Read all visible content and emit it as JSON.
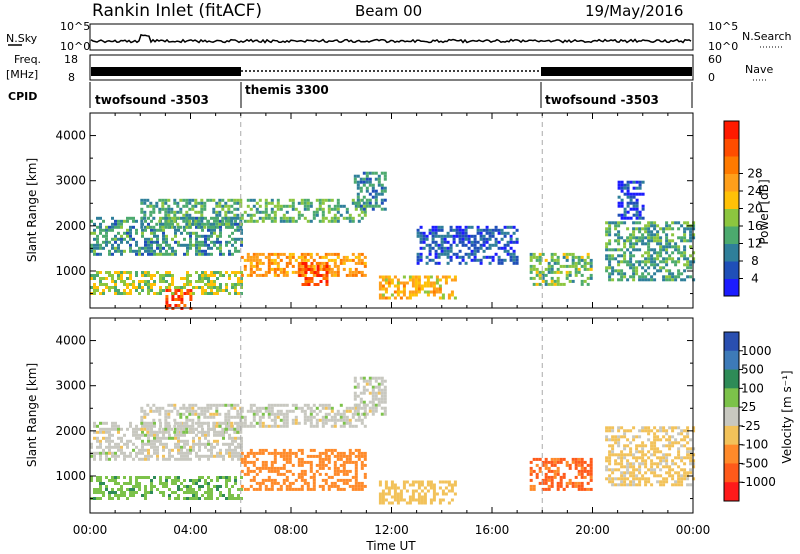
{
  "header": {
    "station": "Rankin Inlet (fitACF)",
    "beam": "Beam 00",
    "date": "19/May/2016"
  },
  "aux_panels": {
    "nsky_label": "N.Sky",
    "nsky_ticks": [
      "10^5",
      "10^0"
    ],
    "nsearch_label": "N.Search",
    "nsearch_ticks": [
      "10^5",
      "10^0"
    ],
    "freq_label_1": "Freq.",
    "freq_label_2": "[MHz]",
    "freq_ticks": [
      "18",
      "8"
    ],
    "nave_label": "Nave",
    "nave_ticks": [
      "60",
      "0"
    ],
    "cpid_label": "CPID",
    "cpid_segments": [
      {
        "label": "twofsound -3503",
        "start_hour": 0,
        "end_hour": 6
      },
      {
        "label": "themis 3300",
        "start_hour": 6,
        "end_hour": 18
      },
      {
        "label": "twofsound -3503",
        "start_hour": 18,
        "end_hour": 24
      }
    ]
  },
  "chart_data": [
    {
      "type": "heatmap",
      "title": "",
      "xlabel": "Time UT",
      "ylabel": "Slant Range [km]",
      "xlim": [
        0,
        24
      ],
      "ylim": [
        180,
        4500
      ],
      "x_ticks": [
        "00:00",
        "04:00",
        "08:00",
        "12:00",
        "16:00",
        "20:00",
        "00:00"
      ],
      "y_ticks": [
        1000,
        2000,
        3000,
        4000
      ],
      "colorbar": {
        "label": "Power [dB]",
        "ticks": [
          "4",
          "8",
          "12",
          "16",
          "20",
          "24",
          "28"
        ],
        "range": [
          0,
          30
        ],
        "colors": [
          "#1c1cff",
          "#1f4fb8",
          "#2f7f9a",
          "#4caa6e",
          "#8cc63f",
          "#ffc107",
          "#ff9f1a",
          "#ff7a00",
          "#ff4d00",
          "#ff1a00"
        ]
      },
      "regions": [
        {
          "t0": 0.0,
          "t1": 6.0,
          "r0": 1400,
          "r1": 2200,
          "value": 9
        },
        {
          "t0": 0.0,
          "t1": 6.0,
          "r0": 500,
          "r1": 1000,
          "value": 14
        },
        {
          "t0": 3.0,
          "t1": 4.0,
          "r0": 200,
          "r1": 600,
          "value": 26
        },
        {
          "t0": 2.0,
          "t1": 6.0,
          "r0": 2000,
          "r1": 2600,
          "value": 10
        },
        {
          "t0": 6.0,
          "t1": 11.0,
          "r0": 2100,
          "r1": 2600,
          "value": 11
        },
        {
          "t0": 6.0,
          "t1": 11.0,
          "r0": 900,
          "r1": 1400,
          "value": 20
        },
        {
          "t0": 8.3,
          "t1": 9.4,
          "r0": 700,
          "r1": 1200,
          "value": 26
        },
        {
          "t0": 10.5,
          "t1": 11.7,
          "r0": 2400,
          "r1": 3200,
          "value": 8
        },
        {
          "t0": 11.5,
          "t1": 14.5,
          "r0": 400,
          "r1": 900,
          "value": 18
        },
        {
          "t0": 13.0,
          "t1": 17.0,
          "r0": 1200,
          "r1": 2000,
          "value": 5
        },
        {
          "t0": 17.5,
          "t1": 20.0,
          "r0": 700,
          "r1": 1400,
          "value": 12
        },
        {
          "t0": 20.5,
          "t1": 24.0,
          "r0": 800,
          "r1": 2100,
          "value": 10
        },
        {
          "t0": 21.0,
          "t1": 22.0,
          "r0": 2200,
          "r1": 3000,
          "value": 4
        }
      ]
    },
    {
      "type": "heatmap",
      "title": "",
      "xlabel": "Time UT",
      "ylabel": "Slant Range [km]",
      "xlim": [
        0,
        24
      ],
      "ylim": [
        180,
        4500
      ],
      "x_ticks": [
        "00:00",
        "04:00",
        "08:00",
        "12:00",
        "16:00",
        "20:00",
        "00:00"
      ],
      "y_ticks": [
        1000,
        2000,
        3000,
        4000
      ],
      "colorbar": {
        "label": "Velocity [m s⁻¹]",
        "ticks": [
          "1000",
          "500",
          "100",
          "25",
          "-25",
          "-100",
          "-500",
          "-1000"
        ],
        "colors": [
          "#2a4fb0",
          "#3d7ab8",
          "#2e8b57",
          "#7cc24a",
          "#c8c8c0",
          "#f2c25a",
          "#ff8a2a",
          "#ff5a1a",
          "#ff1a1a"
        ]
      },
      "regions": [
        {
          "t0": 0.0,
          "t1": 6.0,
          "r0": 1400,
          "r1": 2200,
          "value": 0
        },
        {
          "t0": 0.0,
          "t1": 6.0,
          "r0": 500,
          "r1": 1000,
          "value": 80
        },
        {
          "t0": 2.0,
          "t1": 6.0,
          "r0": 2000,
          "r1": 2600,
          "value": 0
        },
        {
          "t0": 6.0,
          "t1": 11.0,
          "r0": 2100,
          "r1": 2600,
          "value": 0
        },
        {
          "t0": 6.0,
          "t1": 11.0,
          "r0": 700,
          "r1": 1600,
          "value": -300
        },
        {
          "t0": 10.5,
          "t1": 11.7,
          "r0": 2400,
          "r1": 3200,
          "value": 0
        },
        {
          "t0": 11.5,
          "t1": 14.5,
          "r0": 400,
          "r1": 900,
          "value": -60
        },
        {
          "t0": 17.5,
          "t1": 20.0,
          "r0": 700,
          "r1": 1400,
          "value": -600
        },
        {
          "t0": 20.5,
          "t1": 24.0,
          "r0": 800,
          "r1": 2100,
          "value": -40
        }
      ]
    }
  ]
}
